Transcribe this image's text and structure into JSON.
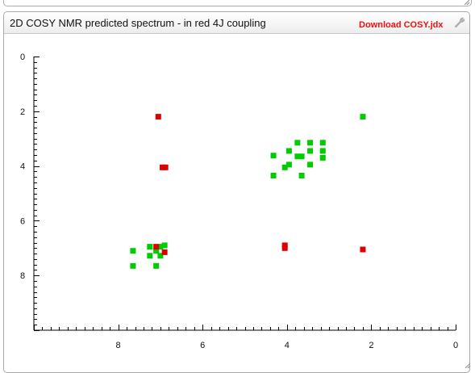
{
  "panel": {
    "title": "2D COSY NMR predicted spectrum - in red 4J coupling",
    "download_label": "Download COSY.jdx"
  },
  "icons": {
    "settings": "wrench-icon",
    "resize": "resize-grip-icon"
  },
  "colors": {
    "coupling_3j": "#00cc00",
    "coupling_4j": "#dd0000",
    "link": "#ee1111"
  },
  "chart_data": {
    "type": "scatter",
    "title": "",
    "xlabel": "",
    "ylabel": "",
    "x_reversed": true,
    "y_reversed": true,
    "xlim": [
      10,
      0
    ],
    "ylim": [
      0,
      10
    ],
    "x_ticks": [
      "8",
      "6",
      "4",
      "2",
      "0"
    ],
    "x_tick_values": [
      8,
      6,
      4,
      2,
      0
    ],
    "y_ticks": [
      "0",
      "2",
      "4",
      "6",
      "8"
    ],
    "y_tick_values": [
      0,
      2,
      4,
      6,
      8
    ],
    "series": [
      {
        "color": "#00cc00",
        "points": [
          [
            7.65,
            7.1
          ],
          [
            7.65,
            7.65
          ],
          [
            7.25,
            6.95
          ],
          [
            7.25,
            7.28
          ],
          [
            7.1,
            7.1
          ],
          [
            7.1,
            7.65
          ],
          [
            7.0,
            6.95
          ],
          [
            7.0,
            7.28
          ],
          [
            6.9,
            6.9
          ],
          [
            2.2,
            2.2
          ],
          [
            4.32,
            3.62
          ],
          [
            4.32,
            4.35
          ],
          [
            4.05,
            4.05
          ],
          [
            3.95,
            3.45
          ],
          [
            3.95,
            3.95
          ],
          [
            3.75,
            3.15
          ],
          [
            3.75,
            3.65
          ],
          [
            3.65,
            3.65
          ],
          [
            3.65,
            4.35
          ],
          [
            3.45,
            3.15
          ],
          [
            3.45,
            3.45
          ],
          [
            3.45,
            3.95
          ],
          [
            3.15,
            3.15
          ],
          [
            3.15,
            3.45
          ],
          [
            3.15,
            3.7
          ]
        ]
      },
      {
        "color": "#dd0000",
        "points": [
          [
            7.05,
            2.2
          ],
          [
            6.95,
            4.05
          ],
          [
            6.88,
            4.05
          ],
          [
            7.1,
            6.95
          ],
          [
            6.9,
            7.15
          ],
          [
            4.05,
            6.9
          ],
          [
            4.05,
            7.0
          ],
          [
            2.2,
            7.05
          ]
        ]
      }
    ]
  }
}
